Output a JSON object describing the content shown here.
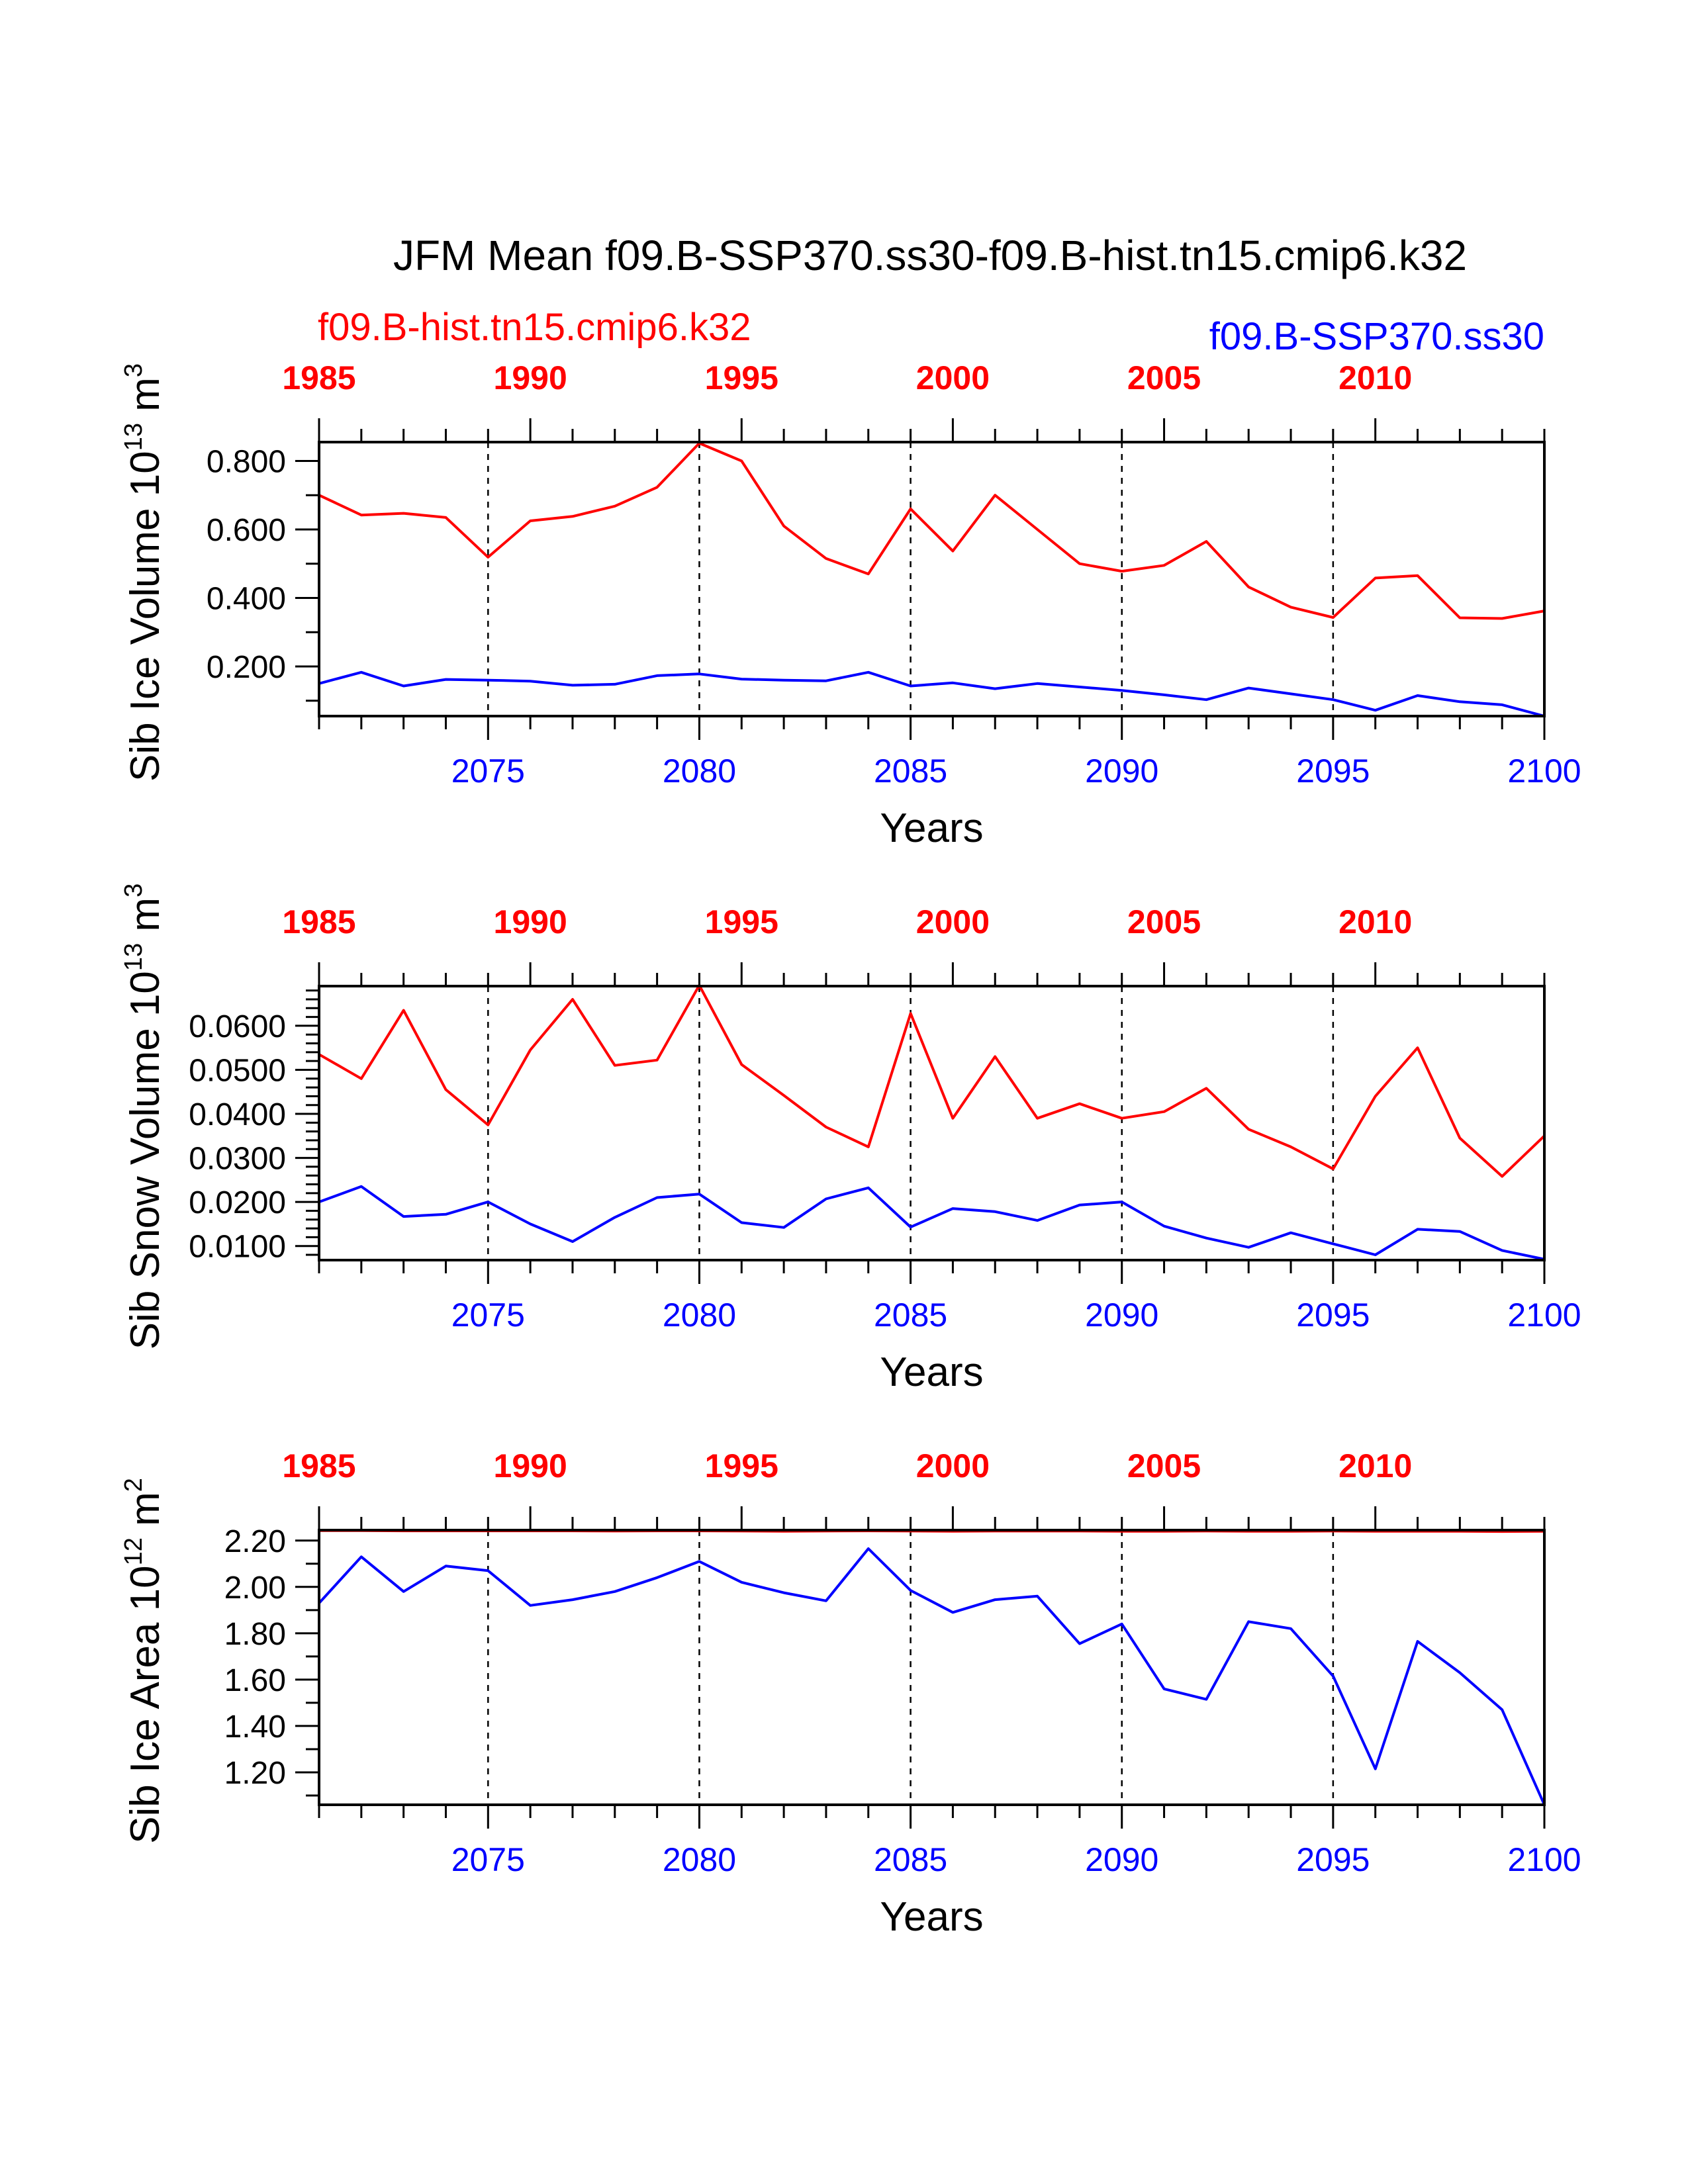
{
  "figure": {
    "title": "JFM Mean f09.B-SSP370.ss30-f09.B-hist.tn15.cmip6.k32",
    "legend_left": "f09.B-hist.tn15.cmip6.k32",
    "legend_right": "f09.B-SSP370.ss30",
    "colors": {
      "hist": "#ff0000",
      "ssp": "#0000ff",
      "axis": "#000000"
    }
  },
  "chart_data": [
    {
      "type": "line",
      "ylabel_main": "Sib Ice Volume 10",
      "ylabel_exp": "13",
      "ylabel_unit": " m",
      "ylabel_unit_exp": "3",
      "xlabel": "Years",
      "xlim": [
        2071,
        2100
      ],
      "ylim": [
        0.055,
        0.855
      ],
      "y_ticks": [
        0.2,
        0.4,
        0.6,
        0.8
      ],
      "y_tick_labels": [
        "0.200",
        "0.400",
        "0.600",
        "0.800"
      ],
      "y_minor": [
        0.1,
        0.3,
        0.5,
        0.7
      ],
      "bottom_ticks": [
        2075,
        2080,
        2085,
        2090,
        2095,
        2100
      ],
      "bottom_tick_labels": [
        "2075",
        "2080",
        "2085",
        "2090",
        "2095",
        "2100"
      ],
      "top_ticks": [
        1985,
        1990,
        1995,
        2000,
        2005,
        2010
      ],
      "top_tick_labels": [
        "1985",
        "1990",
        "1995",
        "2000",
        "2005",
        "2010"
      ],
      "grid_x": [
        2075,
        2080,
        2085,
        2090,
        2095
      ],
      "series": [
        {
          "name": "f09.B-hist.tn15.cmip6.k32",
          "color": "#ff0000",
          "axis": "top",
          "x": [
            1985,
            1986,
            1987,
            1988,
            1989,
            1990,
            1991,
            1992,
            1993,
            1994,
            1995,
            1996,
            1997,
            1998,
            1999,
            2000,
            2001,
            2002,
            2003,
            2004,
            2005,
            2006,
            2007,
            2008,
            2009,
            2010,
            2011,
            2012,
            2013,
            2014
          ],
          "values": [
            0.7,
            0.642,
            0.647,
            0.635,
            0.519,
            0.625,
            0.638,
            0.668,
            0.723,
            0.852,
            0.8,
            0.61,
            0.515,
            0.47,
            0.66,
            0.537,
            0.7,
            0.6,
            0.5,
            0.478,
            0.495,
            0.565,
            0.432,
            0.373,
            0.343,
            0.458,
            0.465,
            0.342,
            0.34,
            0.362
          ]
        },
        {
          "name": "f09.B-SSP370.ss30",
          "color": "#0000ff",
          "axis": "bottom",
          "x": [
            2071,
            2072,
            2073,
            2074,
            2075,
            2076,
            2077,
            2078,
            2079,
            2080,
            2081,
            2082,
            2083,
            2084,
            2085,
            2086,
            2087,
            2088,
            2089,
            2090,
            2091,
            2092,
            2093,
            2094,
            2095,
            2096,
            2097,
            2098,
            2099,
            2100
          ],
          "values": [
            0.15,
            0.183,
            0.143,
            0.162,
            0.16,
            0.157,
            0.145,
            0.148,
            0.173,
            0.178,
            0.163,
            0.16,
            0.158,
            0.183,
            0.143,
            0.152,
            0.135,
            0.15,
            0.14,
            0.13,
            0.117,
            0.103,
            0.137,
            0.12,
            0.103,
            0.072,
            0.115,
            0.097,
            0.088,
            0.055
          ]
        }
      ]
    },
    {
      "type": "line",
      "ylabel_main": "Sib Snow Volume 10",
      "ylabel_exp": "13",
      "ylabel_unit": " m",
      "ylabel_unit_exp": "3",
      "xlabel": "Years",
      "xlim": [
        2071,
        2100
      ],
      "ylim": [
        0.0068,
        0.069
      ],
      "y_ticks": [
        0.01,
        0.02,
        0.03,
        0.04,
        0.05,
        0.06
      ],
      "y_tick_labels": [
        "0.0100",
        "0.0200",
        "0.0300",
        "0.0400",
        "0.0500",
        "0.0600"
      ],
      "y_minor": [
        0.008,
        0.012,
        0.014,
        0.016,
        0.018,
        0.022,
        0.024,
        0.026,
        0.028,
        0.032,
        0.034,
        0.036,
        0.038,
        0.042,
        0.044,
        0.046,
        0.048,
        0.052,
        0.054,
        0.056,
        0.058,
        0.062,
        0.064,
        0.066,
        0.068
      ],
      "bottom_ticks": [
        2075,
        2080,
        2085,
        2090,
        2095,
        2100
      ],
      "bottom_tick_labels": [
        "2075",
        "2080",
        "2085",
        "2090",
        "2095",
        "2100"
      ],
      "top_ticks": [
        1985,
        1990,
        1995,
        2000,
        2005,
        2010
      ],
      "top_tick_labels": [
        "1985",
        "1990",
        "1995",
        "2000",
        "2005",
        "2010"
      ],
      "grid_x": [
        2075,
        2080,
        2085,
        2090,
        2095
      ],
      "series": [
        {
          "name": "f09.B-hist.tn15.cmip6.k32",
          "color": "#ff0000",
          "axis": "top",
          "x": [
            1985,
            1986,
            1987,
            1988,
            1989,
            1990,
            1991,
            1992,
            1993,
            1994,
            1995,
            1996,
            1997,
            1998,
            1999,
            2000,
            2001,
            2002,
            2003,
            2004,
            2005,
            2006,
            2007,
            2008,
            2009,
            2010,
            2011,
            2012,
            2013,
            2014
          ],
          "values": [
            0.0535,
            0.048,
            0.0635,
            0.0455,
            0.0375,
            0.0545,
            0.066,
            0.051,
            0.0522,
            0.0692,
            0.0512,
            0.0442,
            0.037,
            0.0325,
            0.0628,
            0.039,
            0.053,
            0.039,
            0.0423,
            0.039,
            0.0405,
            0.0458,
            0.0365,
            0.0325,
            0.0275,
            0.044,
            0.055,
            0.0345,
            0.0258,
            0.035
          ]
        },
        {
          "name": "f09.B-SSP370.ss30",
          "color": "#0000ff",
          "axis": "bottom",
          "x": [
            2071,
            2072,
            2073,
            2074,
            2075,
            2076,
            2077,
            2078,
            2079,
            2080,
            2081,
            2082,
            2083,
            2084,
            2085,
            2086,
            2087,
            2088,
            2089,
            2090,
            2091,
            2092,
            2093,
            2094,
            2095,
            2096,
            2097,
            2098,
            2099,
            2100
          ],
          "values": [
            0.02,
            0.0235,
            0.0167,
            0.0172,
            0.02,
            0.015,
            0.011,
            0.0165,
            0.021,
            0.0218,
            0.0153,
            0.0142,
            0.0207,
            0.0232,
            0.0143,
            0.0185,
            0.0178,
            0.0158,
            0.0193,
            0.02,
            0.0145,
            0.0118,
            0.0097,
            0.013,
            0.0105,
            0.008,
            0.0138,
            0.0133,
            0.009,
            0.007
          ]
        }
      ]
    },
    {
      "type": "line",
      "ylabel_main": "Sib Ice Area 10",
      "ylabel_exp": "12",
      "ylabel_unit": " m",
      "ylabel_unit_exp": "2",
      "xlabel": "Years",
      "xlim": [
        2071,
        2100
      ],
      "ylim": [
        1.06,
        2.245
      ],
      "y_ticks": [
        1.2,
        1.4,
        1.6,
        1.8,
        2.0,
        2.2
      ],
      "y_tick_labels": [
        "1.20",
        "1.40",
        "1.60",
        "1.80",
        "2.00",
        "2.20"
      ],
      "y_minor": [
        1.1,
        1.3,
        1.5,
        1.7,
        1.9,
        2.1
      ],
      "bottom_ticks": [
        2075,
        2080,
        2085,
        2090,
        2095,
        2100
      ],
      "bottom_tick_labels": [
        "2075",
        "2080",
        "2085",
        "2090",
        "2095",
        "2100"
      ],
      "top_ticks": [
        1985,
        1990,
        1995,
        2000,
        2005,
        2010
      ],
      "top_tick_labels": [
        "1985",
        "1990",
        "1995",
        "2000",
        "2005",
        "2010"
      ],
      "grid_x": [
        2075,
        2080,
        2085,
        2090,
        2095
      ],
      "series": [
        {
          "name": "f09.B-hist.tn15.cmip6.k32",
          "color": "#ff0000",
          "axis": "top",
          "x": [
            1985,
            1986,
            1987,
            1988,
            1989,
            1990,
            1991,
            1992,
            1993,
            1994,
            1995,
            1996,
            1997,
            1998,
            1999,
            2000,
            2001,
            2002,
            2003,
            2004,
            2005,
            2006,
            2007,
            2008,
            2009,
            2010,
            2011,
            2012,
            2013,
            2014
          ],
          "values": [
            2.243,
            2.243,
            2.242,
            2.242,
            2.242,
            2.242,
            2.242,
            2.241,
            2.242,
            2.242,
            2.241,
            2.24,
            2.241,
            2.242,
            2.241,
            2.24,
            2.241,
            2.241,
            2.241,
            2.24,
            2.24,
            2.241,
            2.24,
            2.24,
            2.241,
            2.24,
            2.24,
            2.24,
            2.239,
            2.24
          ]
        },
        {
          "name": "f09.B-SSP370.ss30",
          "color": "#0000ff",
          "axis": "bottom",
          "x": [
            2071,
            2072,
            2073,
            2074,
            2075,
            2076,
            2077,
            2078,
            2079,
            2080,
            2081,
            2082,
            2083,
            2084,
            2085,
            2086,
            2087,
            2088,
            2089,
            2090,
            2091,
            2092,
            2093,
            2094,
            2095,
            2096,
            2097,
            2098,
            2099,
            2100
          ],
          "values": [
            1.93,
            2.13,
            1.98,
            2.09,
            2.07,
            1.92,
            1.945,
            1.98,
            2.04,
            2.11,
            2.02,
            1.975,
            1.94,
            2.165,
            1.985,
            1.89,
            1.945,
            1.96,
            1.755,
            1.84,
            1.56,
            1.515,
            1.85,
            1.82,
            1.615,
            1.215,
            1.765,
            1.63,
            1.47,
            1.06
          ]
        }
      ]
    }
  ]
}
